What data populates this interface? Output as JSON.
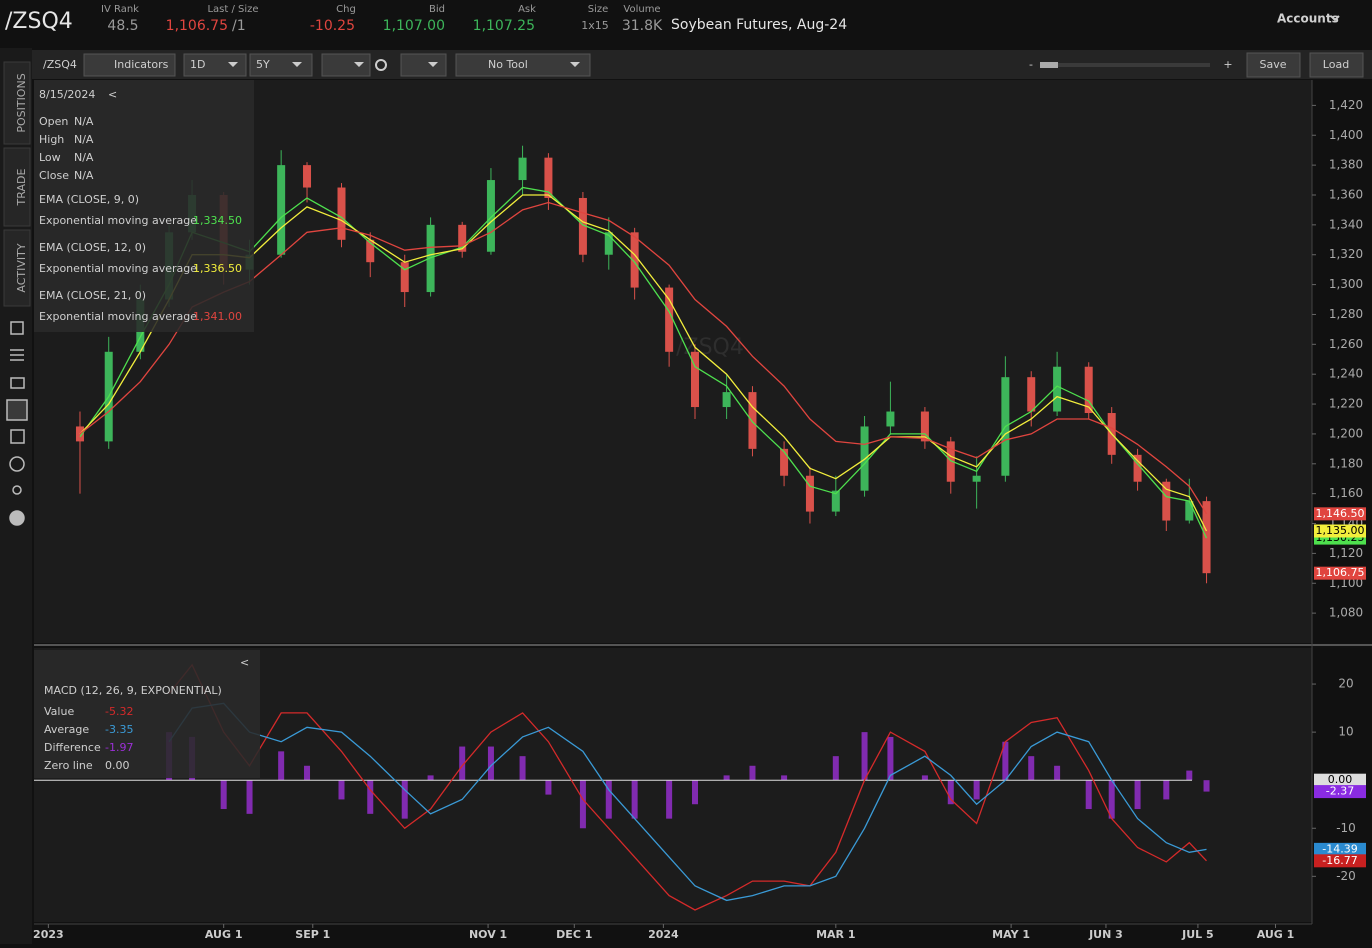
{
  "header": {
    "symbol": "/ZSQ4",
    "iv_rank_label": "IV Rank",
    "iv_rank": "48.5",
    "last_label": "Last / Size",
    "last": "1,106.75",
    "size": "/1",
    "chg_label": "Chg",
    "chg": "-10.25",
    "bid_label": "Bid",
    "bid": "1,107.00",
    "ask_label": "Ask",
    "ask": "1,107.25",
    "size_label": "Size",
    "bid_ask_size": "1x15",
    "volume_label": "Volume",
    "volume": "31.8K",
    "description": "Soybean Futures, Aug-24",
    "accounts": "Accounts"
  },
  "toolbar": {
    "symbol": "/ZSQ4",
    "indicators": "Indicators",
    "aggregation": "1D",
    "range": "5Y",
    "tool": "No Tool",
    "zoom_out": "-",
    "zoom_in": "+",
    "save": "Save",
    "load": "Load"
  },
  "sidebar": {
    "tabs": [
      "POSITIONS",
      "TRADE",
      "ACTIVITY"
    ]
  },
  "study_panel": {
    "date": "8/15/2024",
    "collapse": "<",
    "rows": [
      {
        "label": "Open",
        "value": "N/A"
      },
      {
        "label": "High",
        "value": "N/A"
      },
      {
        "label": "Low",
        "value": "N/A"
      },
      {
        "label": "Close",
        "value": "N/A"
      }
    ]
  },
  "chart_data": [
    {
      "type": "candlestick",
      "watermark": "/ZSQ4",
      "x": [
        "2023-06-12",
        "2023-06-22",
        "2023-07-03",
        "2023-07-13",
        "2023-07-21",
        "2023-08-01",
        "2023-08-10",
        "2023-08-21",
        "2023-08-30",
        "2023-09-11",
        "2023-09-21",
        "2023-10-03",
        "2023-10-12",
        "2023-10-23",
        "2023-11-02",
        "2023-11-13",
        "2023-11-22",
        "2023-12-04",
        "2023-12-13",
        "2023-12-22",
        "2024-01-03",
        "2024-01-12",
        "2024-01-23",
        "2024-02-01",
        "2024-02-12",
        "2024-02-21",
        "2024-03-01",
        "2024-03-11",
        "2024-03-20",
        "2024-04-01",
        "2024-04-10",
        "2024-04-19",
        "2024-04-29",
        "2024-05-08",
        "2024-05-17",
        "2024-05-28",
        "2024-06-05",
        "2024-06-14",
        "2024-06-24",
        "2024-07-02",
        "2024-07-08"
      ],
      "open": [
        1205,
        1195,
        1255,
        1290,
        1335,
        1360,
        1310,
        1320,
        1380,
        1365,
        1330,
        1315,
        1295,
        1340,
        1322,
        1370,
        1385,
        1358,
        1320,
        1335,
        1298,
        1255,
        1218,
        1228,
        1190,
        1172,
        1148,
        1162,
        1205,
        1215,
        1195,
        1168,
        1172,
        1238,
        1215,
        1245,
        1214,
        1186,
        1168,
        1142,
        1155
      ],
      "high": [
        1215,
        1265,
        1300,
        1340,
        1370,
        1362,
        1330,
        1390,
        1382,
        1368,
        1335,
        1320,
        1345,
        1342,
        1378,
        1393,
        1388,
        1362,
        1345,
        1338,
        1300,
        1260,
        1240,
        1232,
        1195,
        1178,
        1172,
        1212,
        1235,
        1218,
        1198,
        1185,
        1252,
        1242,
        1255,
        1248,
        1218,
        1190,
        1170,
        1170,
        1158
      ],
      "low": [
        1160,
        1190,
        1250,
        1285,
        1330,
        1300,
        1300,
        1318,
        1355,
        1325,
        1305,
        1285,
        1292,
        1318,
        1320,
        1360,
        1350,
        1315,
        1310,
        1290,
        1245,
        1210,
        1210,
        1185,
        1165,
        1140,
        1145,
        1158,
        1200,
        1190,
        1160,
        1150,
        1168,
        1205,
        1212,
        1210,
        1180,
        1162,
        1135,
        1140,
        1100
      ],
      "close": [
        1195,
        1255,
        1290,
        1335,
        1360,
        1310,
        1320,
        1380,
        1365,
        1330,
        1315,
        1295,
        1340,
        1322,
        1370,
        1385,
        1358,
        1320,
        1335,
        1298,
        1255,
        1218,
        1228,
        1190,
        1172,
        1148,
        1162,
        1205,
        1215,
        1195,
        1168,
        1172,
        1238,
        1215,
        1245,
        1214,
        1186,
        1168,
        1142,
        1155,
        1106.75
      ],
      "up_color": "#3db55a",
      "down_color": "#d9514a",
      "series": [
        {
          "name": "EMA (CLOSE, 9, 0)",
          "description": "Exponential moving average",
          "hover_label": "1,334.50",
          "color": "#4ee04e",
          "values": [
            1198,
            1225,
            1265,
            1300,
            1335,
            1328,
            1322,
            1345,
            1358,
            1345,
            1328,
            1310,
            1318,
            1325,
            1345,
            1365,
            1362,
            1340,
            1333,
            1315,
            1282,
            1245,
            1232,
            1208,
            1188,
            1165,
            1160,
            1180,
            1200,
            1200,
            1182,
            1175,
            1205,
            1215,
            1232,
            1222,
            1200,
            1180,
            1158,
            1155,
            1130.25
          ]
        },
        {
          "name": "EMA (CLOSE, 12, 0)",
          "description": "Exponential moving average",
          "hover_label": "1,336.50",
          "color": "#f2ee3c",
          "values": [
            1200,
            1220,
            1255,
            1290,
            1320,
            1320,
            1318,
            1338,
            1352,
            1343,
            1330,
            1315,
            1320,
            1324,
            1342,
            1360,
            1360,
            1342,
            1336,
            1320,
            1290,
            1258,
            1240,
            1218,
            1198,
            1177,
            1170,
            1183,
            1198,
            1198,
            1185,
            1178,
            1200,
            1210,
            1225,
            1218,
            1200,
            1182,
            1163,
            1158,
            1135
          ]
        },
        {
          "name": "EMA (CLOSE, 21, 0)",
          "description": "Exponential moving average",
          "hover_label": "1,341.00",
          "color": "#e0453f",
          "values": [
            1200,
            1215,
            1235,
            1260,
            1285,
            1295,
            1302,
            1320,
            1335,
            1338,
            1333,
            1323,
            1325,
            1326,
            1335,
            1350,
            1355,
            1348,
            1343,
            1332,
            1313,
            1290,
            1272,
            1252,
            1232,
            1210,
            1195,
            1193,
            1198,
            1197,
            1190,
            1184,
            1196,
            1200,
            1210,
            1210,
            1204,
            1193,
            1178,
            1165,
            1146.5
          ]
        }
      ],
      "markers": [
        {
          "value": 1146.5,
          "label": "1,146.50",
          "color": "#e0453f"
        },
        {
          "value": 1130.25,
          "label": "1,130.25",
          "color": "#4ee04e"
        },
        {
          "value": 1135,
          "label": "1,135.00",
          "color": "#f2ee3c"
        },
        {
          "value": 1106.75,
          "label": "1,106.75",
          "color": "#e0453f"
        }
      ],
      "xlim": [
        "2023-05-27",
        "2024-08-13"
      ],
      "ylim": [
        1060,
        1437
      ],
      "yticks": [
        {
          "value": 1080,
          "label": "1,080"
        },
        {
          "value": 1100,
          "label": "1,100"
        },
        {
          "value": 1120,
          "label": "1,120"
        },
        {
          "value": 1140,
          "label": "1,140"
        },
        {
          "value": 1160,
          "label": "1,160"
        },
        {
          "value": 1180,
          "label": "1,180"
        },
        {
          "value": 1200,
          "label": "1,200"
        },
        {
          "value": 1220,
          "label": "1,220"
        },
        {
          "value": 1240,
          "label": "1,240"
        },
        {
          "value": 1260,
          "label": "1,260"
        },
        {
          "value": 1280,
          "label": "1,280"
        },
        {
          "value": 1300,
          "label": "1,300"
        },
        {
          "value": 1320,
          "label": "1,320"
        },
        {
          "value": 1340,
          "label": "1,340"
        },
        {
          "value": 1360,
          "label": "1,360"
        },
        {
          "value": 1380,
          "label": "1,380"
        },
        {
          "value": 1400,
          "label": "1,400"
        },
        {
          "value": 1420,
          "label": "1,420"
        }
      ]
    },
    {
      "type": "macd",
      "title": "MACD (12, 26, 9, EXPONENTIAL)",
      "collapse": "<",
      "x": [
        "2023-06-12",
        "2023-06-22",
        "2023-07-03",
        "2023-07-13",
        "2023-07-21",
        "2023-08-01",
        "2023-08-10",
        "2023-08-21",
        "2023-08-30",
        "2023-09-11",
        "2023-09-21",
        "2023-10-03",
        "2023-10-12",
        "2023-10-23",
        "2023-11-02",
        "2023-11-13",
        "2023-11-22",
        "2023-12-04",
        "2023-12-13",
        "2023-12-22",
        "2024-01-03",
        "2024-01-12",
        "2024-01-23",
        "2024-02-01",
        "2024-02-12",
        "2024-02-21",
        "2024-03-01",
        "2024-03-11",
        "2024-03-20",
        "2024-04-01",
        "2024-04-10",
        "2024-04-19",
        "2024-04-29",
        "2024-05-08",
        "2024-05-17",
        "2024-05-28",
        "2024-06-05",
        "2024-06-14",
        "2024-06-24",
        "2024-07-02",
        "2024-07-08"
      ],
      "series": [
        {
          "name": "Value",
          "hover_label": "-5.32",
          "color": "#d42a2a",
          "values": [
            null,
            null,
            null,
            18,
            24,
            10,
            3,
            14,
            14,
            6,
            -2,
            -10,
            -6,
            3,
            10,
            14,
            8,
            -4,
            -10,
            -16,
            -24,
            -27,
            -24,
            -21,
            -21,
            -22,
            -15,
            0,
            10,
            6,
            -4,
            -9,
            8,
            12,
            13,
            2,
            -8,
            -14,
            -17,
            -13,
            -16.77
          ]
        },
        {
          "name": "Average",
          "hover_label": "-3.35",
          "color": "#3a9ad6",
          "values": [
            null,
            null,
            null,
            8,
            15,
            16,
            10,
            8,
            11,
            10,
            5,
            -2,
            -7,
            -4,
            3,
            9,
            11,
            6,
            -2,
            -8,
            -16,
            -22,
            -25,
            -24,
            -22,
            -22,
            -20,
            -10,
            1,
            5,
            1,
            -5,
            0,
            7,
            10,
            8,
            0,
            -8,
            -13,
            -15,
            -14.39
          ]
        },
        {
          "name": "Difference",
          "hover_label": "-1.97",
          "color": "#9b30d6",
          "values": [
            null,
            null,
            null,
            10,
            9,
            -6,
            -7,
            6,
            3,
            -4,
            -7,
            -8,
            1,
            7,
            7,
            5,
            -3,
            -10,
            -8,
            -8,
            -8,
            -5,
            1,
            3,
            1,
            0,
            5,
            10,
            9,
            1,
            -5,
            -4,
            8,
            5,
            3,
            -6,
            -8,
            -6,
            -4,
            2,
            -2.37
          ]
        }
      ],
      "zero_line": {
        "name": "Zero line",
        "hover_label": "0.00",
        "value": 0,
        "color": "#dddddd"
      },
      "markers": [
        {
          "value": 0,
          "label": "0.00",
          "color": "#dddddd"
        },
        {
          "value": -2.37,
          "label": "-2.37",
          "color": "#8a2be2"
        },
        {
          "value": -14.39,
          "label": "-14.39",
          "color": "#2a8ad0"
        },
        {
          "value": -16.77,
          "label": "-16.77",
          "color": "#c82020"
        }
      ],
      "xlim": [
        "2023-05-27",
        "2024-08-13"
      ],
      "ylim": [
        -29.5,
        27.5
      ],
      "yticks": [
        20,
        10,
        -10,
        -20
      ],
      "xticks": [
        {
          "value": "2023-06-01",
          "label": "2023"
        },
        {
          "value": "2023-08-01",
          "label": "AUG 1"
        },
        {
          "value": "2023-09-01",
          "label": "SEP 1"
        },
        {
          "value": "2023-11-01",
          "label": "NOV 1"
        },
        {
          "value": "2023-12-01",
          "label": "DEC 1"
        },
        {
          "value": "2024-01-01",
          "label": "2024"
        },
        {
          "value": "2024-03-01",
          "label": "MAR 1"
        },
        {
          "value": "2024-05-01",
          "label": "MAY 1"
        },
        {
          "value": "2024-06-03",
          "label": "JUN 3"
        },
        {
          "value": "2024-07-05",
          "label": "JUL 5"
        },
        {
          "value": "2024-08-01",
          "label": "AUG 1"
        }
      ]
    }
  ]
}
